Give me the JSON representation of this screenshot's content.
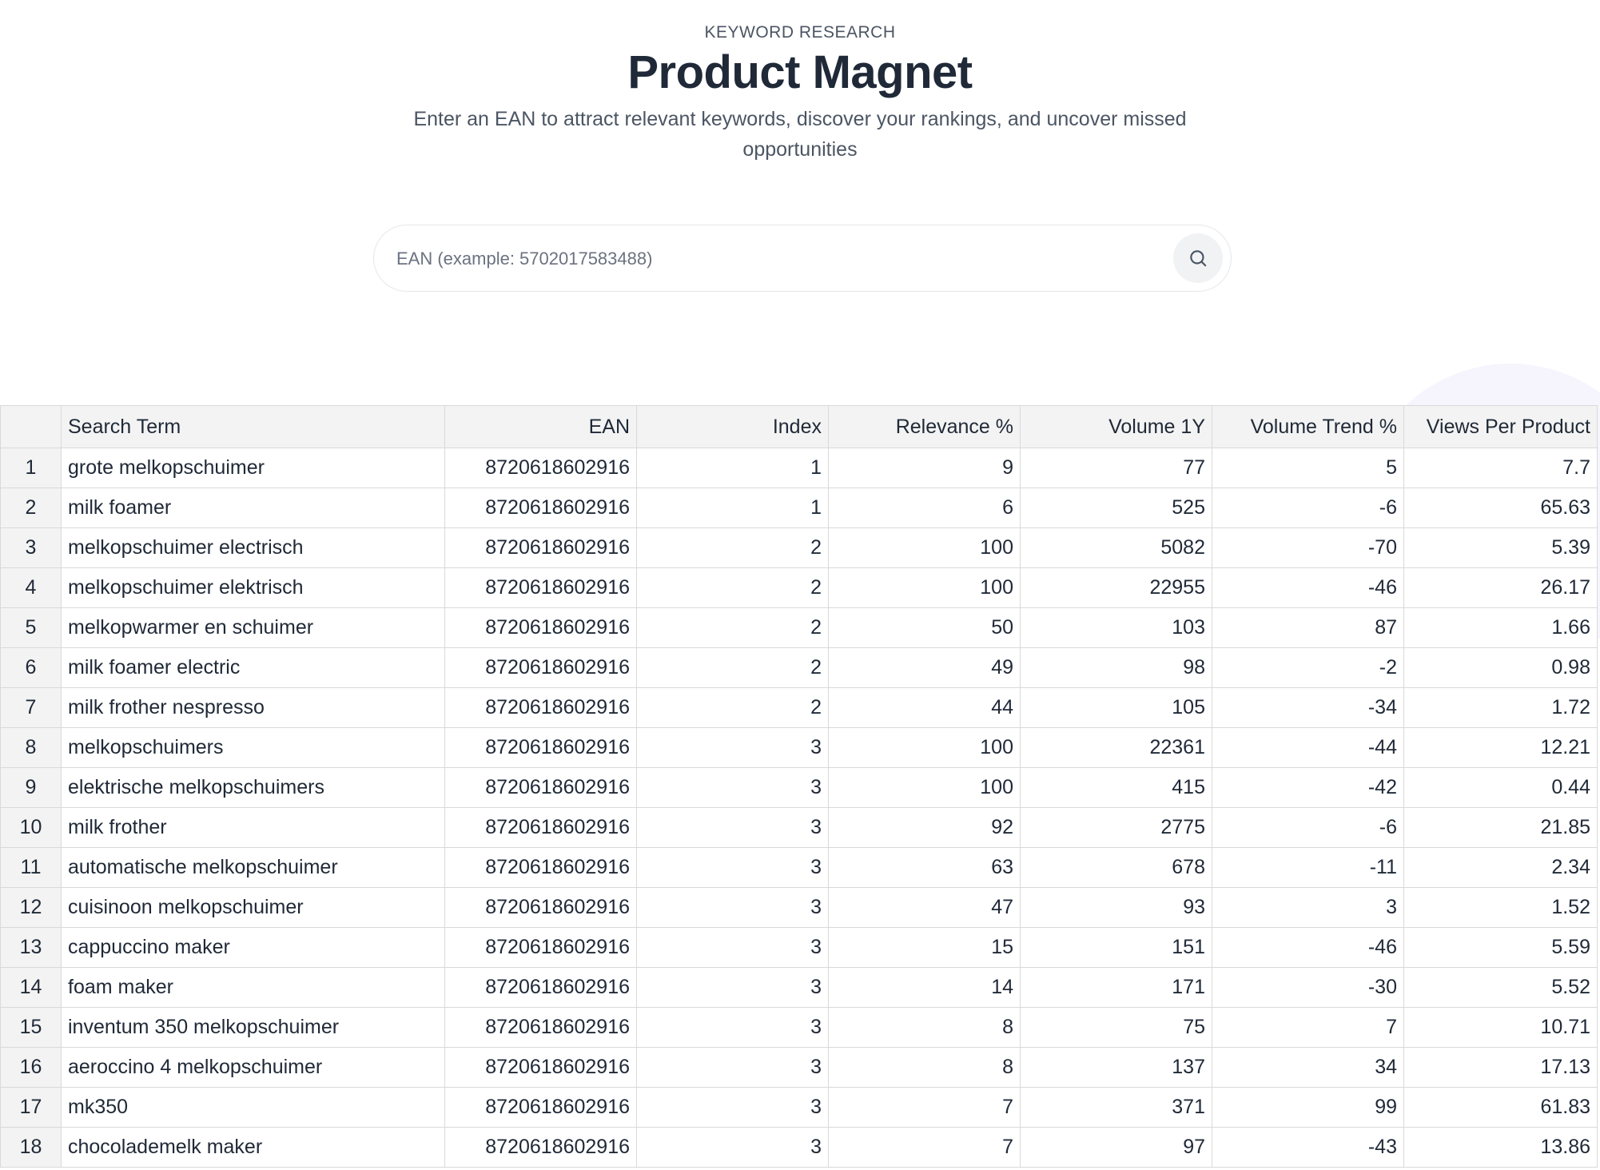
{
  "header": {
    "eyebrow": "KEYWORD RESEARCH",
    "title": "Product Magnet",
    "subtitle": "Enter an EAN to attract relevant keywords, discover your rankings, and uncover missed opportunities"
  },
  "search": {
    "placeholder": "EAN (example: 5702017583488)",
    "value": "",
    "button_icon": "search-icon"
  },
  "table": {
    "columns": [
      "",
      "Search Term",
      "EAN",
      "Index",
      "Relevance %",
      "Volume 1Y",
      "Volume Trend %",
      "Views Per Product"
    ],
    "rows": [
      [
        "1",
        "grote melkopschuimer",
        "8720618602916",
        "1",
        "9",
        "77",
        "5",
        "7.7"
      ],
      [
        "2",
        "milk foamer",
        "8720618602916",
        "1",
        "6",
        "525",
        "-6",
        "65.63"
      ],
      [
        "3",
        "melkopschuimer electrisch",
        "8720618602916",
        "2",
        "100",
        "5082",
        "-70",
        "5.39"
      ],
      [
        "4",
        "melkopschuimer elektrisch",
        "8720618602916",
        "2",
        "100",
        "22955",
        "-46",
        "26.17"
      ],
      [
        "5",
        "melkopwarmer en schuimer",
        "8720618602916",
        "2",
        "50",
        "103",
        "87",
        "1.66"
      ],
      [
        "6",
        "milk foamer electric",
        "8720618602916",
        "2",
        "49",
        "98",
        "-2",
        "0.98"
      ],
      [
        "7",
        "milk frother nespresso",
        "8720618602916",
        "2",
        "44",
        "105",
        "-34",
        "1.72"
      ],
      [
        "8",
        "melkopschuimers",
        "8720618602916",
        "3",
        "100",
        "22361",
        "-44",
        "12.21"
      ],
      [
        "9",
        "elektrische melkopschuimers",
        "8720618602916",
        "3",
        "100",
        "415",
        "-42",
        "0.44"
      ],
      [
        "10",
        "milk frother",
        "8720618602916",
        "3",
        "92",
        "2775",
        "-6",
        "21.85"
      ],
      [
        "11",
        "automatische melkopschuimer",
        "8720618602916",
        "3",
        "63",
        "678",
        "-11",
        "2.34"
      ],
      [
        "12",
        "cuisinoon melkopschuimer",
        "8720618602916",
        "3",
        "47",
        "93",
        "3",
        "1.52"
      ],
      [
        "13",
        "cappuccino maker",
        "8720618602916",
        "3",
        "15",
        "151",
        "-46",
        "5.59"
      ],
      [
        "14",
        "foam maker",
        "8720618602916",
        "3",
        "14",
        "171",
        "-30",
        "5.52"
      ],
      [
        "15",
        "inventum 350 melkopschuimer",
        "8720618602916",
        "3",
        "8",
        "75",
        "7",
        "10.71"
      ],
      [
        "16",
        "aeroccino 4 melkopschuimer",
        "8720618602916",
        "3",
        "8",
        "137",
        "34",
        "17.13"
      ],
      [
        "17",
        "mk350",
        "8720618602916",
        "3",
        "7",
        "371",
        "99",
        "61.83"
      ],
      [
        "18",
        "chocolademelk maker",
        "8720618602916",
        "3",
        "7",
        "97",
        "-43",
        "13.86"
      ]
    ]
  }
}
